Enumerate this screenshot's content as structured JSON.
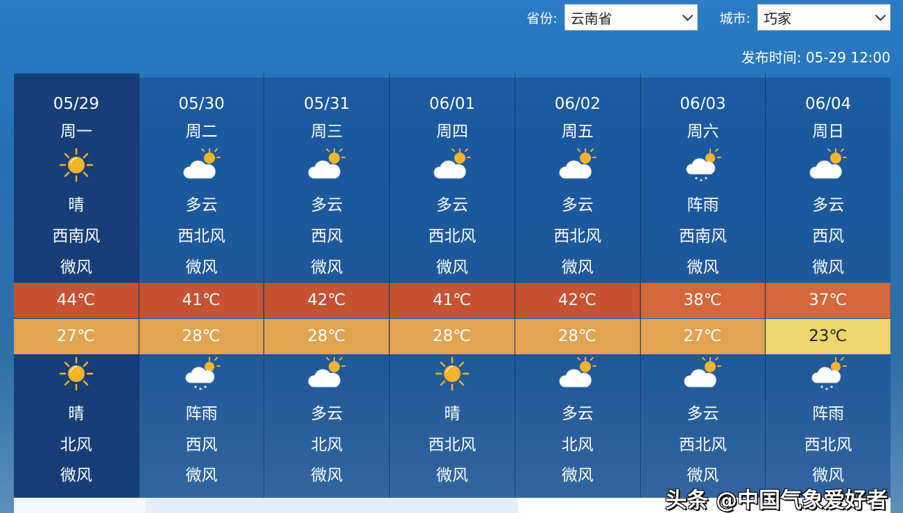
{
  "header": {
    "province_label": "省份:",
    "province_value": "云南省",
    "city_label": "城市:",
    "city_value": "巧家",
    "publish_time": "发布时间: 05-29 12:00"
  },
  "colors": {
    "high_hot": "#c75133",
    "high_warm": "#d4683b",
    "low_warm": "#e2a452",
    "low_mild": "#ecd66c",
    "selected_day": "#173e78"
  },
  "days": [
    {
      "date": "05/29",
      "weekday": "周一",
      "day_icon": "sun-icon",
      "day_weather": "晴",
      "day_wind": "西南风",
      "day_level": "微风",
      "high": "44℃",
      "low": "27℃",
      "night_icon": "sun-icon",
      "night_weather": "晴",
      "night_wind": "北风",
      "night_level": "微风"
    },
    {
      "date": "05/30",
      "weekday": "周二",
      "day_icon": "cloud-sun-icon",
      "day_weather": "多云",
      "day_wind": "西北风",
      "day_level": "微风",
      "high": "41℃",
      "low": "28℃",
      "night_icon": "rain-icon",
      "night_weather": "阵雨",
      "night_wind": "西风",
      "night_level": "微风"
    },
    {
      "date": "05/31",
      "weekday": "周三",
      "day_icon": "cloud-sun-icon",
      "day_weather": "多云",
      "day_wind": "西风",
      "day_level": "微风",
      "high": "42℃",
      "low": "28℃",
      "night_icon": "cloud-sun-icon",
      "night_weather": "多云",
      "night_wind": "北风",
      "night_level": "微风"
    },
    {
      "date": "06/01",
      "weekday": "周四",
      "day_icon": "cloud-sun-icon",
      "day_weather": "多云",
      "day_wind": "西北风",
      "day_level": "微风",
      "high": "41℃",
      "low": "28℃",
      "night_icon": "sun-icon",
      "night_weather": "晴",
      "night_wind": "西北风",
      "night_level": "微风"
    },
    {
      "date": "06/02",
      "weekday": "周五",
      "day_icon": "cloud-sun-icon",
      "day_weather": "多云",
      "day_wind": "西北风",
      "day_level": "微风",
      "high": "42℃",
      "low": "28℃",
      "night_icon": "cloud-sun-icon",
      "night_weather": "多云",
      "night_wind": "北风",
      "night_level": "微风"
    },
    {
      "date": "06/03",
      "weekday": "周六",
      "day_icon": "rain-icon",
      "day_weather": "阵雨",
      "day_wind": "西南风",
      "day_level": "微风",
      "high": "38℃",
      "low": "27℃",
      "night_icon": "cloud-sun-icon",
      "night_weather": "多云",
      "night_wind": "西北风",
      "night_level": "微风"
    },
    {
      "date": "06/04",
      "weekday": "周日",
      "day_icon": "cloud-sun-icon",
      "day_weather": "多云",
      "day_wind": "西风",
      "day_level": "微风",
      "high": "37℃",
      "low": "23℃",
      "night_icon": "rain-icon",
      "night_weather": "阵雨",
      "night_wind": "西北风",
      "night_level": "微风"
    }
  ],
  "watermark": "头条 @中国气象爱好者"
}
